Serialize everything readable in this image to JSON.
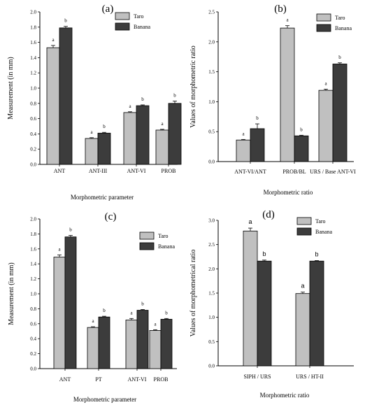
{
  "chart_data": [
    {
      "type": "bar",
      "panel_label": "(a)",
      "categories": [
        "ANT",
        "ANT-III",
        "ANT-VI",
        "PROB"
      ],
      "series": [
        {
          "name": "Taro",
          "values": [
            1.53,
            0.34,
            0.68,
            0.45
          ],
          "errors": [
            0.03,
            0.01,
            0.01,
            0.01
          ],
          "letters": [
            "a",
            "a",
            "a",
            "a"
          ]
        },
        {
          "name": "Banana",
          "values": [
            1.79,
            0.41,
            0.77,
            0.8
          ],
          "errors": [
            0.02,
            0.01,
            0.01,
            0.03
          ],
          "letters": [
            "b",
            "b",
            "b",
            "b"
          ]
        }
      ],
      "xlabel": "Morphometric parameter",
      "ylabel": "Measurement (in mm)",
      "ylim": [
        0,
        2.0
      ],
      "yticks": [
        "0.0",
        "0.2",
        "0.4",
        "0.6",
        "0.8",
        "1.0",
        "1.2",
        "1.4",
        "1.6",
        "1.8",
        "2.0"
      ],
      "legend": "top-right",
      "grid": false
    },
    {
      "type": "bar",
      "panel_label": "(b)",
      "categories": [
        "ANT-VI/ANT",
        "PROB/BL",
        "URS / Base ANT-VI"
      ],
      "series": [
        {
          "name": "Taro",
          "values": [
            0.36,
            2.23,
            1.19
          ],
          "errors": [
            0.01,
            0.04,
            0.02
          ],
          "letters": [
            "a",
            "a",
            "a"
          ]
        },
        {
          "name": "Banana",
          "values": [
            0.55,
            0.43,
            1.63
          ],
          "errors": [
            0.08,
            0.01,
            0.02
          ],
          "letters": [
            "b",
            "b",
            "b"
          ]
        }
      ],
      "xlabel": "Morphometric ratio",
      "ylabel": "Values of morphometric ratio",
      "ylim": [
        0,
        2.5
      ],
      "yticks": [
        "0.0",
        "0.5",
        "1.0",
        "1.5",
        "2.0",
        "2.5"
      ],
      "legend": "top-right",
      "grid": false
    },
    {
      "type": "bar",
      "panel_label": "(c)",
      "categories": [
        "ANT",
        "PT",
        "ANT-VI",
        "PROB"
      ],
      "series": [
        {
          "name": "Taro",
          "values": [
            1.49,
            0.55,
            0.65,
            0.51
          ],
          "errors": [
            0.03,
            0.01,
            0.02,
            0.01
          ],
          "letters": [
            "a",
            "a",
            "a",
            "a"
          ]
        },
        {
          "name": "Banana",
          "values": [
            1.76,
            0.69,
            0.78,
            0.66
          ],
          "errors": [
            0.02,
            0.01,
            0.01,
            0.01
          ],
          "letters": [
            "b",
            "b",
            "b",
            "b"
          ]
        }
      ],
      "xlabel": "Morphometric parameter",
      "ylabel": "Measurement (in mm)",
      "ylim": [
        0,
        2.0
      ],
      "yticks": [
        "0.0",
        "0.2",
        "0.4",
        "0.6",
        "0.8",
        "1.0",
        "1.2",
        "1.4",
        "1.6",
        "1.8",
        "2.0"
      ],
      "legend": "top-right",
      "grid": false
    },
    {
      "type": "bar",
      "panel_label": "(d)",
      "categories": [
        "SIPH / URS",
        "URS / HT-II"
      ],
      "series": [
        {
          "name": "Taro",
          "values": [
            2.78,
            1.49
          ],
          "errors": [
            0.06,
            0.03
          ],
          "letters": [
            "a",
            "a"
          ]
        },
        {
          "name": "Banana",
          "values": [
            2.16,
            2.16
          ],
          "errors": [
            0.02,
            0.01
          ],
          "letters": [
            "b",
            "b"
          ]
        }
      ],
      "xlabel": "Morphometric ratio",
      "ylabel": "Values of morphometrical ratio",
      "ylim": [
        0,
        3.0
      ],
      "yticks": [
        "0.0",
        "0.5",
        "1.0",
        "1.5",
        "2.0",
        "2.5",
        "3.0"
      ],
      "legend": "top-left",
      "grid": false
    }
  ],
  "colors": {
    "taro": "#c0c0c0",
    "banana": "#3c3c3c",
    "axis": "#000000"
  }
}
